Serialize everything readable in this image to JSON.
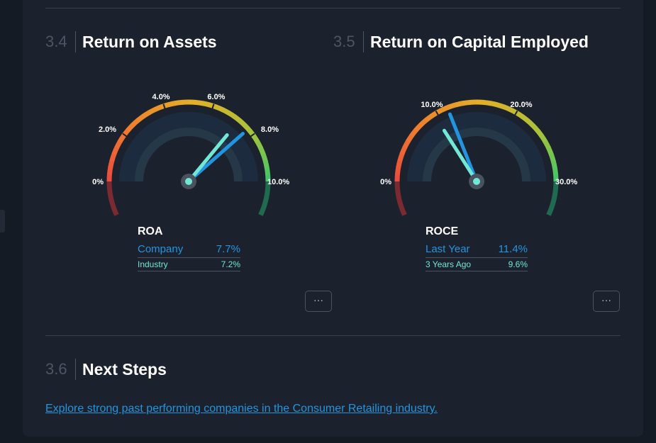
{
  "sections": {
    "roa": {
      "number": "3.4",
      "title": "Return on Assets"
    },
    "roce": {
      "number": "3.5",
      "title": "Return on Capital Employed"
    },
    "next": {
      "number": "3.6",
      "title": "Next Steps"
    }
  },
  "more_button_label": "···",
  "next_steps_link": "Explore strong past performing companies in the Consumer Retailing industry.",
  "colors": {
    "company": "#2394df",
    "comparison": "#71e7d6",
    "background": "#1c222d"
  },
  "chart_data": [
    {
      "type": "gauge",
      "title": "ROA",
      "range": [
        0,
        10
      ],
      "ticks": [
        {
          "value": 0,
          "label": "0%"
        },
        {
          "value": 2,
          "label": "2.0%"
        },
        {
          "value": 4,
          "label": "4.0%"
        },
        {
          "value": 6,
          "label": "6.0%"
        },
        {
          "value": 8,
          "label": "8.0%"
        },
        {
          "value": 10,
          "label": "10.0%"
        }
      ],
      "series": [
        {
          "name": "Company",
          "value": 7.7,
          "display": "7.7%",
          "color": "#2394df"
        },
        {
          "name": "Industry",
          "value": 7.2,
          "display": "7.2%",
          "color": "#71e7d6"
        }
      ]
    },
    {
      "type": "gauge",
      "title": "ROCE",
      "range": [
        0,
        30
      ],
      "ticks": [
        {
          "value": 0,
          "label": "0%"
        },
        {
          "value": 10,
          "label": "10.0%"
        },
        {
          "value": 20,
          "label": "20.0%"
        },
        {
          "value": 30,
          "label": "30.0%"
        }
      ],
      "series": [
        {
          "name": "Last Year",
          "value": 11.4,
          "display": "11.4%",
          "color": "#2394df"
        },
        {
          "name": "3 Years Ago",
          "value": 9.6,
          "display": "9.6%",
          "color": "#71e7d6"
        }
      ]
    }
  ]
}
